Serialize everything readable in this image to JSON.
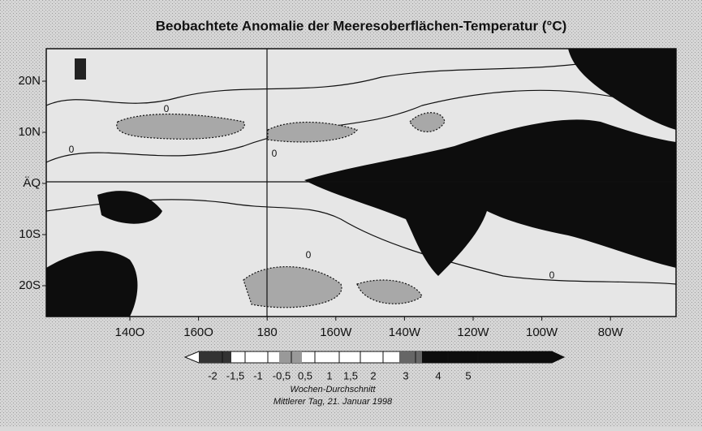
{
  "title": "Beobachtete Anomalie der Meeresoberflächen-Temperatur (°C)",
  "map": {
    "lat_labels": [
      "20N",
      "10N",
      "ÄQ",
      "10S",
      "20S"
    ],
    "lon_labels": [
      "140O",
      "160O",
      "180",
      "160W",
      "140W",
      "120W",
      "100W",
      "80W"
    ],
    "contour_labels": [
      "0",
      "0",
      "0",
      "0",
      "0"
    ]
  },
  "colorbar": {
    "labels": [
      "-2",
      "-1,5",
      "-1",
      "-0,5",
      "0,5",
      "1",
      "1,5",
      "2",
      "3",
      "4",
      "5"
    ]
  },
  "caption": [
    "Wochen-Durchschnitt",
    "Mittlerer Tag, 21. Januar 1998"
  ]
}
